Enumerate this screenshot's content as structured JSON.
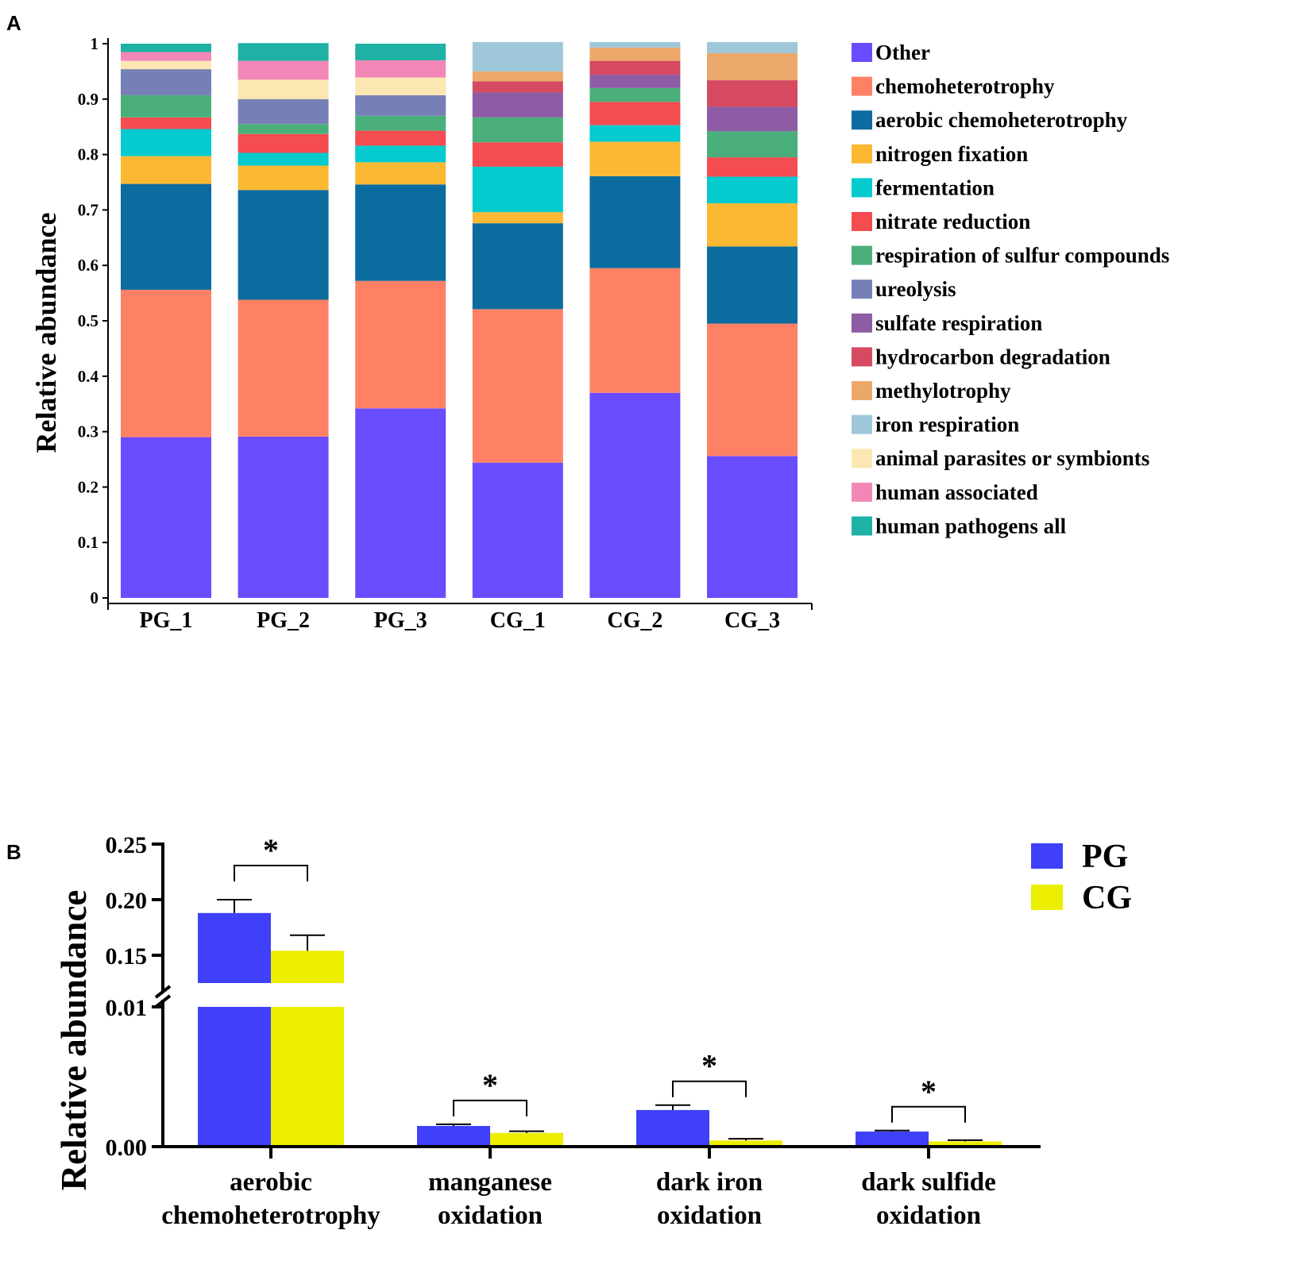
{
  "chart_data": [
    {
      "panel": "A",
      "type": "bar",
      "stacked": true,
      "ylabel": "Relative abundance",
      "ylim": [
        0,
        1
      ],
      "yticks": [
        "0",
        "0.1",
        "0.2",
        "0.3",
        "0.4",
        "0.5",
        "0.6",
        "0.7",
        "0.8",
        "0.9",
        "1"
      ],
      "categories": [
        "PG_1",
        "PG_2",
        "PG_3",
        "CG_1",
        "CG_2",
        "CG_3"
      ],
      "legend_position": "right",
      "series": [
        {
          "name": "Other",
          "color": "#6a4cff",
          "values": [
            0.29,
            0.291,
            0.342,
            0.244,
            0.37,
            0.256
          ]
        },
        {
          "name": "chemoheterotrophy",
          "color": "#fe8166",
          "values": [
            0.266,
            0.247,
            0.23,
            0.277,
            0.225,
            0.239
          ]
        },
        {
          "name": "aerobic chemoheterotrophy",
          "color": "#0d6c9f",
          "values": [
            0.191,
            0.198,
            0.174,
            0.155,
            0.166,
            0.139
          ]
        },
        {
          "name": "nitrogen fixation",
          "color": "#fbb933",
          "values": [
            0.05,
            0.044,
            0.04,
            0.02,
            0.062,
            0.078
          ]
        },
        {
          "name": "fermentation",
          "color": "#05cace",
          "values": [
            0.049,
            0.023,
            0.03,
            0.082,
            0.03,
            0.048
          ]
        },
        {
          "name": "nitrate reduction",
          "color": "#f44c50",
          "values": [
            0.021,
            0.034,
            0.027,
            0.044,
            0.042,
            0.035
          ]
        },
        {
          "name": "respiration of sulfur compounds",
          "color": "#4aaf7a",
          "values": [
            0.04,
            0.018,
            0.027,
            0.045,
            0.025,
            0.047
          ]
        },
        {
          "name": "ureolysis",
          "color": "#7680b6",
          "values": [
            0.047,
            0.045,
            0.037,
            0.0,
            0.0,
            0.0
          ]
        },
        {
          "name": "sulfate respiration",
          "color": "#8d5ca4",
          "values": [
            0.0,
            0.0,
            0.0,
            0.045,
            0.024,
            0.044
          ]
        },
        {
          "name": "hydrocarbon degradation",
          "color": "#d54a60",
          "values": [
            0.0,
            0.0,
            0.0,
            0.02,
            0.025,
            0.048
          ]
        },
        {
          "name": "methylotrophy",
          "color": "#eba86a",
          "values": [
            0.0,
            0.0,
            0.0,
            0.018,
            0.024,
            0.049
          ]
        },
        {
          "name": "iron respiration",
          "color": "#9ec7da",
          "values": [
            0.0,
            0.0,
            0.0,
            0.053,
            0.01,
            0.02
          ]
        },
        {
          "name": "animal parasites or symbionts",
          "color": "#fce7b2",
          "values": [
            0.015,
            0.035,
            0.032,
            0.0,
            0.0,
            0.0
          ]
        },
        {
          "name": "human associated",
          "color": "#f287b7",
          "values": [
            0.016,
            0.034,
            0.031,
            0.0,
            0.0,
            0.0
          ]
        },
        {
          "name": "human pathogens all",
          "color": "#1fb1a5",
          "values": [
            0.015,
            0.032,
            0.03,
            0.0,
            0.0,
            0.0
          ]
        }
      ]
    },
    {
      "panel": "B",
      "type": "bar",
      "ylabel": "Relative abundance",
      "axis_break": {
        "lower": [
          0.0,
          0.01
        ],
        "upper": [
          0.125,
          0.25
        ]
      },
      "yticks": [
        "0.00",
        "0.01",
        "0.15",
        "0.20",
        "0.25"
      ],
      "categories": [
        "aerobic chemoheterotrophy",
        "manganese oxidation",
        "dark iron oxidation",
        "dark sulfide oxidation"
      ],
      "category_lines": [
        [
          "aerobic",
          "chemoheterotrophy"
        ],
        [
          "manganese",
          "oxidation"
        ],
        [
          "dark iron",
          "oxidation"
        ],
        [
          "dark sulfide",
          "oxidation"
        ]
      ],
      "legend_position": "top-right",
      "significance": [
        "*",
        "*",
        "*",
        "*"
      ],
      "series": [
        {
          "name": "PG",
          "color": "#4040fa",
          "values": [
            0.188,
            0.00148,
            0.00262,
            0.00108
          ],
          "errors": [
            0.012,
            0.00012,
            0.00035,
            7e-05
          ]
        },
        {
          "name": "CG",
          "color": "#eded00",
          "values": [
            0.154,
            0.00098,
            0.00044,
            0.00037
          ],
          "errors": [
            0.014,
            0.00012,
            0.00012,
            9e-05
          ]
        }
      ]
    }
  ],
  "panel_labels": {
    "a": "A",
    "b": "B"
  }
}
